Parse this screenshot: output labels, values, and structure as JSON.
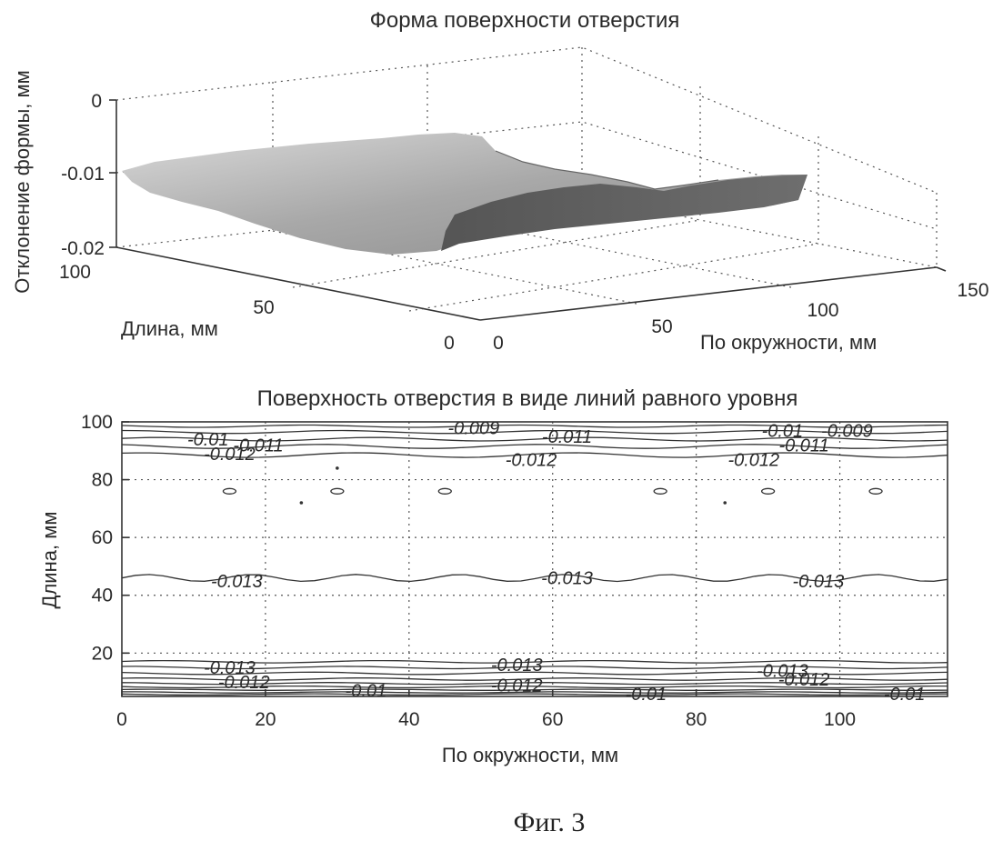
{
  "chart_data": [
    {
      "type": "surface3d",
      "title": "Форма поверхности отверстия",
      "zlabel": "Отклонение формы, мм",
      "xlabel": "По окружности, мм",
      "ylabel": "Длина, мм",
      "z_ticks": [
        "0",
        "-0.01",
        "-0.02"
      ],
      "x_ticks": [
        "0",
        "50",
        "100",
        "150"
      ],
      "y_ticks": [
        "0",
        "50",
        "100"
      ],
      "zlim": [
        -0.02,
        0
      ],
      "xlim": [
        0,
        150
      ],
      "ylim": [
        0,
        100
      ],
      "grid": true
    },
    {
      "type": "contour",
      "title": "Поверхность отверстия в виде линий равного уровня",
      "xlabel": "По окружности, мм",
      "ylabel": "Длина, мм",
      "x_ticks": [
        "0",
        "20",
        "40",
        "60",
        "80",
        "100"
      ],
      "y_ticks": [
        "20",
        "40",
        "60",
        "80",
        "100"
      ],
      "xlim": [
        0,
        115
      ],
      "ylim": [
        5,
        100
      ],
      "grid": true,
      "level_labels": [
        {
          "text": "-0.013",
          "x": 16,
          "y": 45
        },
        {
          "text": "-0.013",
          "x": 62,
          "y": 46
        },
        {
          "text": "-0.013",
          "x": 97,
          "y": 45
        },
        {
          "text": "-0.012",
          "x": 15,
          "y": 89
        },
        {
          "text": "-0.012",
          "x": 57,
          "y": 87
        },
        {
          "text": "-0.012",
          "x": 88,
          "y": 87
        },
        {
          "text": "-0.011",
          "x": 19,
          "y": 92
        },
        {
          "text": "-0.011",
          "x": 62,
          "y": 95
        },
        {
          "text": "-0.011",
          "x": 95,
          "y": 92
        },
        {
          "text": "-0.01",
          "x": 12,
          "y": 94
        },
        {
          "text": "-0.01",
          "x": 92,
          "y": 97
        },
        {
          "text": "-0.009",
          "x": 49,
          "y": 98
        },
        {
          "text": "-0.009",
          "x": 101,
          "y": 97
        },
        {
          "text": "-0.013",
          "x": 15,
          "y": 15
        },
        {
          "text": "-0.013",
          "x": 55,
          "y": 16
        },
        {
          "text": "-0.013",
          "x": 92,
          "y": 14
        },
        {
          "text": "-0.012",
          "x": 17,
          "y": 10
        },
        {
          "text": "-0.012",
          "x": 55,
          "y": 9
        },
        {
          "text": "-0.012",
          "x": 95,
          "y": 11
        },
        {
          "text": "-0.01",
          "x": 34,
          "y": 7
        },
        {
          "text": "-0.01",
          "x": 73,
          "y": 6
        },
        {
          "text": "-0.01",
          "x": 109,
          "y": 6
        }
      ]
    }
  ],
  "figure_caption": "Фиг. 3"
}
